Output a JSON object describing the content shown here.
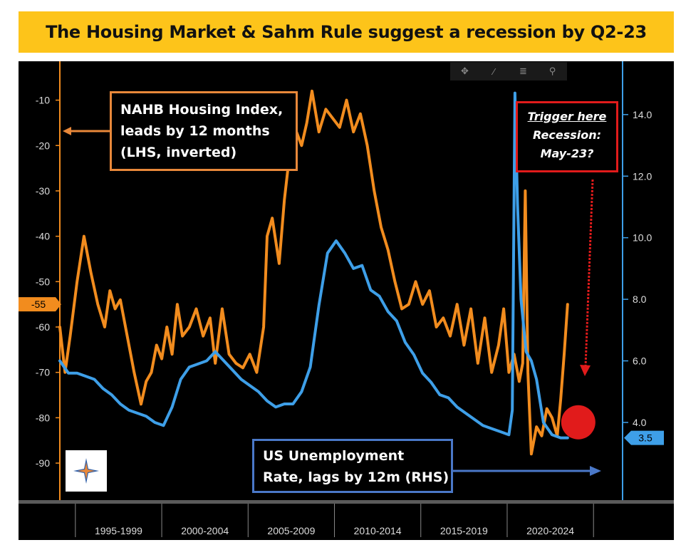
{
  "title": "The Housing Market & Sahm Rule suggest a recession by Q2-23",
  "colors": {
    "nahb": "#f28c1e",
    "unemployment": "#3e9fe8",
    "trigger": "#e11b1b",
    "background": "#000000"
  },
  "toolbar": {
    "icons": [
      "crosshair-icon",
      "pencil-icon",
      "list-icon",
      "magnifier-icon"
    ],
    "glyphs": [
      "✥",
      "∕",
      "≣",
      "⚲"
    ]
  },
  "annotations": {
    "nahb_box": {
      "line1": "NAHB Housing Index,",
      "line2": "leads by 12 months",
      "line3": "(LHS, inverted)"
    },
    "unemp_box": {
      "line1": "US Unemployment",
      "line2": "Rate, lags by 12m (RHS)"
    },
    "trigger_box": {
      "line1": "Trigger here",
      "line2": "Recession:",
      "line3": "May-23?"
    }
  },
  "chart_data": {
    "type": "line",
    "title": "The Housing Market & Sahm Rule suggest a recession by Q2-23",
    "x_range": [
      1994.0,
      2026.5
    ],
    "x_tick_labels": [
      "1995-1999",
      "2000-2004",
      "2005-2009",
      "2010-2014",
      "2015-2019",
      "2020-2024"
    ],
    "x_tick_ranges": [
      [
        1994.9,
        1999.9
      ],
      [
        1999.9,
        2004.9
      ],
      [
        2004.9,
        2009.9
      ],
      [
        2009.9,
        2014.9
      ],
      [
        2014.9,
        2019.9
      ],
      [
        2019.9,
        2024.9
      ]
    ],
    "left_axis": {
      "label": "NAHB Housing Index (inverted)",
      "inverted": true,
      "range": [
        -3,
        -98
      ],
      "ticks": [
        -10,
        -20,
        -30,
        -40,
        -50,
        -60,
        -70,
        -80,
        -90
      ],
      "last_value_label": "-55",
      "last_value": -55
    },
    "right_axis": {
      "label": "US Unemployment Rate",
      "range": [
        15.5,
        1.5
      ],
      "ticks": [
        4.0,
        6.0,
        8.0,
        10.0,
        12.0,
        14.0
      ],
      "tick_labels": [
        "4.0",
        "6.0",
        "8.0",
        "10.0",
        "12.0",
        "14.0"
      ],
      "last_value_label": "3.5",
      "last_value": 3.5
    },
    "series": [
      {
        "name": "NAHB Housing Index, leads by 12 months (LHS, inverted)",
        "axis": "left",
        "color": "#f28c1e",
        "x": [
          1994.0,
          1994.3,
          1994.6,
          1995.0,
          1995.4,
          1995.8,
          1996.2,
          1996.6,
          1996.9,
          1997.2,
          1997.5,
          1997.9,
          1998.3,
          1998.7,
          1999.0,
          1999.3,
          1999.6,
          1999.9,
          2000.2,
          2000.5,
          2000.8,
          2001.1,
          2001.5,
          2001.9,
          2002.3,
          2002.7,
          2003.0,
          2003.4,
          2003.8,
          2004.2,
          2004.6,
          2005.0,
          2005.4,
          2005.8,
          2006.0,
          2006.3,
          2006.7,
          2007.0,
          2007.3,
          2007.7,
          2008.0,
          2008.3,
          2008.6,
          2009.0,
          2009.4,
          2009.8,
          2010.2,
          2010.6,
          2011.0,
          2011.4,
          2011.8,
          2012.2,
          2012.6,
          2013.0,
          2013.4,
          2013.8,
          2014.2,
          2014.6,
          2015.0,
          2015.4,
          2015.8,
          2016.2,
          2016.6,
          2017.0,
          2017.4,
          2017.8,
          2018.2,
          2018.6,
          2019.0,
          2019.4,
          2019.7,
          2020.0,
          2020.3,
          2020.6,
          2020.8,
          2020.95,
          2021.1,
          2021.3,
          2021.6,
          2021.9,
          2022.2,
          2022.5,
          2022.8,
          2023.0,
          2023.2,
          2023.4
        ],
        "values": [
          -60,
          -70,
          -62,
          -50,
          -40,
          -48,
          -55,
          -60,
          -52,
          -56,
          -54,
          -62,
          -70,
          -77,
          -72,
          -70,
          -64,
          -67,
          -60,
          -66,
          -55,
          -62,
          -60,
          -56,
          -62,
          -58,
          -68,
          -56,
          -66,
          -68,
          -69,
          -66,
          -70,
          -60,
          -40,
          -36,
          -46,
          -32,
          -22,
          -17,
          -20,
          -15,
          -8,
          -17,
          -12,
          -14,
          -16,
          -10,
          -17,
          -13,
          -20,
          -30,
          -38,
          -43,
          -50,
          -56,
          -55,
          -50,
          -55,
          -52,
          -60,
          -58,
          -62,
          -55,
          -64,
          -56,
          -68,
          -58,
          -70,
          -64,
          -56,
          -70,
          -66,
          -72,
          -68,
          -30,
          -70,
          -88,
          -82,
          -84,
          -78,
          -80,
          -84,
          -76,
          -66,
          -55
        ]
      },
      {
        "name": "US Unemployment Rate, lags by 12m (RHS)",
        "axis": "right",
        "color": "#3e9fe8",
        "x": [
          1994.0,
          1994.5,
          1995.0,
          1995.5,
          1996.0,
          1996.5,
          1997.0,
          1997.5,
          1998.0,
          1998.5,
          1999.0,
          1999.5,
          2000.0,
          2000.5,
          2001.0,
          2001.5,
          2002.0,
          2002.5,
          2003.0,
          2003.5,
          2004.0,
          2004.5,
          2005.0,
          2005.5,
          2006.0,
          2006.5,
          2007.0,
          2007.5,
          2008.0,
          2008.5,
          2009.0,
          2009.5,
          2010.0,
          2010.5,
          2011.0,
          2011.5,
          2012.0,
          2012.5,
          2013.0,
          2013.5,
          2014.0,
          2014.5,
          2015.0,
          2015.5,
          2016.0,
          2016.5,
          2017.0,
          2017.5,
          2018.0,
          2018.5,
          2019.0,
          2019.5,
          2020.0,
          2020.2,
          2020.35,
          2020.5,
          2020.7,
          2021.0,
          2021.3,
          2021.6,
          2022.0,
          2022.5,
          2023.0,
          2023.4
        ],
        "values": [
          6.0,
          5.6,
          5.6,
          5.5,
          5.4,
          5.1,
          4.9,
          4.6,
          4.4,
          4.3,
          4.2,
          4.0,
          3.9,
          4.5,
          5.4,
          5.8,
          5.9,
          6.0,
          6.3,
          6.0,
          5.7,
          5.4,
          5.2,
          5.0,
          4.7,
          4.5,
          4.6,
          4.6,
          5.0,
          5.8,
          7.8,
          9.5,
          9.9,
          9.5,
          9.0,
          9.1,
          8.3,
          8.1,
          7.6,
          7.3,
          6.6,
          6.2,
          5.6,
          5.3,
          4.9,
          4.8,
          4.5,
          4.3,
          4.1,
          3.9,
          3.8,
          3.7,
          3.6,
          4.4,
          14.7,
          11.1,
          8.0,
          6.3,
          6.0,
          5.4,
          4.0,
          3.6,
          3.5,
          3.5
        ]
      }
    ],
    "recession_marker": {
      "x": 2023.4,
      "value": -81,
      "label": "Recession: May-23?"
    }
  }
}
